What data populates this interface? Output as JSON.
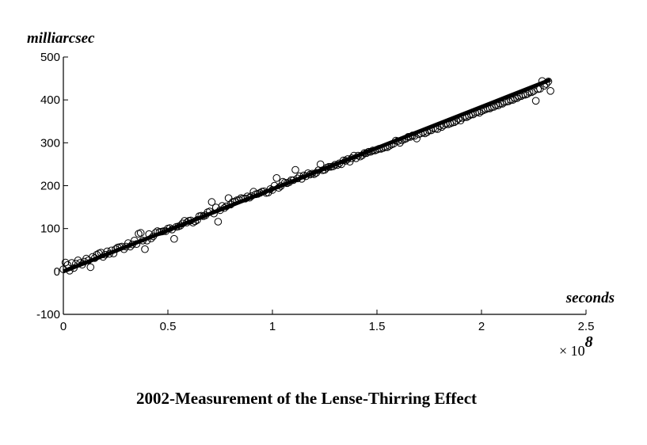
{
  "chart_data": {
    "type": "scatter",
    "title": "2002-Measurement of the Lense-Thirring Effect",
    "xlabel": "seconds",
    "ylabel": "milliarcsec",
    "x_multiplier_prefix": "× 10",
    "x_multiplier_exponent": "8",
    "xlim": [
      0,
      2.5
    ],
    "ylim": [
      -100,
      500
    ],
    "x_ticks": [
      "0",
      "0.5",
      "1",
      "1.5",
      "2",
      "2.5"
    ],
    "y_ticks": [
      "-100",
      "0",
      "100",
      "200",
      "300",
      "400",
      "500"
    ],
    "grid": false,
    "fit_line": {
      "x": [
        0,
        2.33
      ],
      "y": [
        0,
        447
      ]
    },
    "points": {
      "x": [
        0.0,
        0.01,
        0.02,
        0.03,
        0.04,
        0.05,
        0.06,
        0.07,
        0.08,
        0.09,
        0.1,
        0.11,
        0.12,
        0.13,
        0.14,
        0.15,
        0.16,
        0.17,
        0.18,
        0.19,
        0.2,
        0.21,
        0.22,
        0.23,
        0.24,
        0.25,
        0.26,
        0.27,
        0.28,
        0.29,
        0.3,
        0.31,
        0.32,
        0.33,
        0.34,
        0.35,
        0.36,
        0.37,
        0.38,
        0.39,
        0.4,
        0.41,
        0.42,
        0.43,
        0.44,
        0.45,
        0.46,
        0.47,
        0.48,
        0.49,
        0.5,
        0.51,
        0.52,
        0.53,
        0.54,
        0.55,
        0.56,
        0.57,
        0.58,
        0.59,
        0.6,
        0.61,
        0.62,
        0.63,
        0.64,
        0.65,
        0.66,
        0.67,
        0.68,
        0.69,
        0.7,
        0.71,
        0.72,
        0.73,
        0.74,
        0.75,
        0.76,
        0.77,
        0.78,
        0.79,
        0.8,
        0.81,
        0.82,
        0.83,
        0.84,
        0.85,
        0.86,
        0.87,
        0.88,
        0.89,
        0.9,
        0.91,
        0.92,
        0.93,
        0.94,
        0.95,
        0.96,
        0.97,
        0.98,
        0.99,
        1.0,
        1.01,
        1.02,
        1.03,
        1.04,
        1.05,
        1.06,
        1.07,
        1.08,
        1.09,
        1.1,
        1.11,
        1.12,
        1.13,
        1.14,
        1.15,
        1.16,
        1.17,
        1.18,
        1.19,
        1.2,
        1.21,
        1.22,
        1.23,
        1.24,
        1.25,
        1.26,
        1.27,
        1.28,
        1.29,
        1.3,
        1.31,
        1.32,
        1.33,
        1.34,
        1.35,
        1.36,
        1.37,
        1.38,
        1.39,
        1.4,
        1.41,
        1.42,
        1.43,
        1.44,
        1.45,
        1.46,
        1.47,
        1.48,
        1.49,
        1.5,
        1.51,
        1.52,
        1.53,
        1.54,
        1.55,
        1.56,
        1.57,
        1.58,
        1.59,
        1.6,
        1.61,
        1.62,
        1.63,
        1.64,
        1.65,
        1.66,
        1.67,
        1.68,
        1.69,
        1.7,
        1.71,
        1.72,
        1.73,
        1.74,
        1.75,
        1.76,
        1.77,
        1.78,
        1.79,
        1.8,
        1.81,
        1.82,
        1.83,
        1.84,
        1.85,
        1.86,
        1.87,
        1.88,
        1.89,
        1.9,
        1.91,
        1.92,
        1.93,
        1.94,
        1.95,
        1.96,
        1.97,
        1.98,
        1.99,
        2.0,
        2.01,
        2.02,
        2.03,
        2.04,
        2.05,
        2.06,
        2.07,
        2.08,
        2.09,
        2.1,
        2.11,
        2.12,
        2.13,
        2.14,
        2.15,
        2.16,
        2.17,
        2.18,
        2.19,
        2.2,
        2.21,
        2.22,
        2.23,
        2.24,
        2.25,
        2.26,
        2.27,
        2.28,
        2.29,
        2.3,
        2.31,
        2.32,
        2.33
      ],
      "y": [
        5.0,
        21.0,
        15.0,
        2.0,
        20.0,
        8.0,
        18.0,
        26.0,
        20.0,
        16.0,
        23.0,
        30.0,
        26.0,
        10.0,
        34.0,
        31.0,
        39.0,
        42.0,
        44.0,
        34.0,
        39.0,
        47.0,
        41.0,
        49.0,
        42.0,
        52.0,
        56.0,
        57.0,
        58.0,
        52.0,
        58.0,
        66.0,
        58.0,
        63.0,
        72.0,
        64.0,
        88.0,
        90.0,
        72.0,
        52.0,
        72.0,
        87.0,
        77.0,
        82.0,
        90.0,
        94.0,
        92.0,
        93.0,
        94.0,
        94.0,
        100.0,
        101.0,
        98.0,
        76.0,
        104.0,
        105.0,
        107.0,
        112.0,
        118.0,
        114.0,
        118.0,
        119.0,
        114.0,
        117.0,
        120.0,
        129.0,
        130.0,
        129.0,
        131.0,
        138.0,
        140.0,
        162.0,
        135.0,
        149.0,
        116.0,
        143.0,
        153.0,
        148.0,
        152.0,
        171.0,
        156.0,
        162.0,
        163.0,
        166.0,
        167.0,
        171.0,
        170.0,
        170.0,
        175.0,
        172.0,
        176.0,
        186.0,
        180.0,
        181.0,
        183.0,
        186.0,
        187.0,
        183.0,
        184.0,
        192.0,
        190.0,
        200.0,
        218.0,
        195.0,
        199.0,
        209.0,
        207.0,
        206.0,
        208.0,
        213.0,
        213.0,
        237.0,
        217.0,
        222.0,
        216.0,
        224.0,
        222.0,
        229.0,
        226.0,
        228.0,
        227.0,
        230.0,
        236.0,
        250.0,
        236.0,
        237.0,
        242.0,
        244.0,
        244.0,
        245.0,
        249.0,
        248.0,
        252.0,
        250.0,
        259.0,
        258.0,
        262.0,
        256.0,
        264.0,
        270.0,
        264.0,
        270.0,
        268.0,
        271.0,
        276.0,
        276.0,
        279.0,
        279.0,
        282.0,
        282.0,
        284.0,
        286.0,
        286.0,
        288.0,
        290.0,
        290.0,
        293.0,
        296.0,
        298.0,
        305.0,
        304.0,
        300.0,
        306.0,
        308.0,
        310.0,
        314.0,
        314.0,
        317.0,
        316.0,
        310.0,
        320.0,
        322.0,
        324.0,
        322.0,
        325.0,
        329.0,
        329.0,
        334.0,
        333.0,
        332.0,
        339.0,
        337.0,
        341.0,
        345.0,
        343.0,
        345.0,
        347.0,
        348.0,
        351.0,
        356.0,
        352.0,
        358.0,
        360.0,
        360.0,
        363.0,
        366.0,
        366.0,
        370.0,
        372.0,
        370.0,
        374.0,
        376.0,
        378.0,
        380.0,
        380.0,
        383.0,
        384.0,
        388.0,
        387.0,
        391.0,
        391.0,
        395.0,
        396.0,
        397.0,
        400.0,
        400.0,
        404.0,
        404.0,
        408.0,
        409.0,
        412.0,
        412.0,
        414.0,
        418.0,
        418.0,
        421.0,
        398.0,
        425.0,
        426.0,
        444.0,
        433.0,
        437.0,
        443.0,
        421.0
      ]
    }
  }
}
